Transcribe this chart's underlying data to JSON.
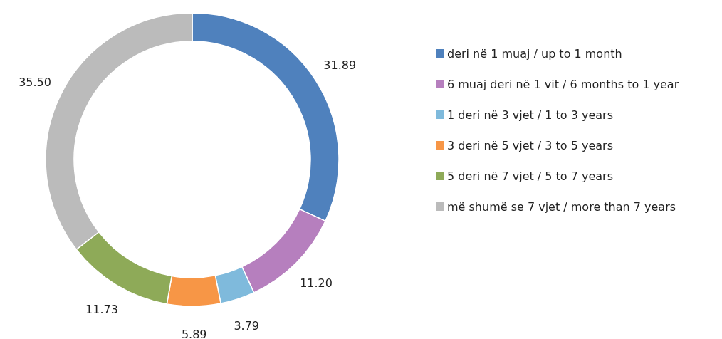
{
  "chart_data": {
    "type": "donut",
    "categories": [
      "deri në 1 muaj / up to 1 month",
      "6 muaj deri në 1 vit / 6 months to 1 year",
      "1 deri në 3 vjet / 1 to 3 years",
      "3 deri në 5 vjet / 3 to 5 years",
      "5 deri në 7 vjet / 5 to 7 years",
      "më shumë se 7 vjet / more than 7 years"
    ],
    "values": [
      31.89,
      11.2,
      3.79,
      5.89,
      11.73,
      35.5
    ],
    "value_labels": [
      "31.89",
      "11.20",
      "3.79",
      "5.89",
      "11.73",
      "35.50"
    ],
    "colors": [
      "#4f81bd",
      "#b67fbe",
      "#7fbadc",
      "#f79646",
      "#8eaa58",
      "#bbbbbb"
    ],
    "legend": "right"
  }
}
